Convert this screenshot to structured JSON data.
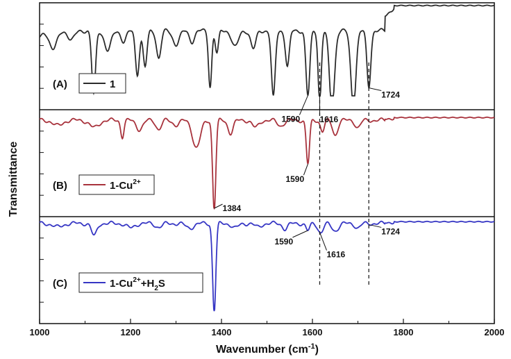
{
  "chart_data": {
    "type": "line",
    "xlabel": "Wavenumber (cm",
    "xlabel_sup": "-1",
    "xlabel_close": ")",
    "ylabel": "Transmittance",
    "xlim": [
      1000,
      2000
    ],
    "xticks": [
      "1000",
      "1200",
      "1400",
      "1600",
      "1800",
      "2000"
    ],
    "stacked_panels": true,
    "grid": false,
    "dashed_reference_lines": [
      1616,
      1724
    ],
    "panels": [
      {
        "panel_label": "(A)",
        "legend": {
          "main": "1",
          "sup": "",
          "mid": "",
          "sub": "",
          "tail": ""
        },
        "color": "#2b2b2b",
        "transmittance_min": 0.0,
        "transmittance_max": 1.0,
        "baseline": 0.72,
        "plateau_start": 1760,
        "plateau_value": 1.0,
        "peaks": [
          {
            "x": 1000,
            "depth": 0.08,
            "width": 8
          },
          {
            "x": 1030,
            "depth": 0.2,
            "width": 12
          },
          {
            "x": 1070,
            "depth": 0.1,
            "width": 10
          },
          {
            "x": 1119,
            "depth": 0.7,
            "width": 6
          },
          {
            "x": 1150,
            "depth": 0.22,
            "width": 10
          },
          {
            "x": 1185,
            "depth": 0.12,
            "width": 8
          },
          {
            "x": 1215,
            "depth": 0.48,
            "width": 6
          },
          {
            "x": 1232,
            "depth": 0.4,
            "width": 6
          },
          {
            "x": 1262,
            "depth": 0.3,
            "width": 7
          },
          {
            "x": 1300,
            "depth": 0.15,
            "width": 10
          },
          {
            "x": 1335,
            "depth": 0.12,
            "width": 8
          },
          {
            "x": 1375,
            "depth": 0.62,
            "width": 5
          },
          {
            "x": 1390,
            "depth": 0.25,
            "width": 5
          },
          {
            "x": 1430,
            "depth": 0.18,
            "width": 10
          },
          {
            "x": 1470,
            "depth": 0.2,
            "width": 8
          },
          {
            "x": 1514,
            "depth": 0.74,
            "width": 6
          },
          {
            "x": 1545,
            "depth": 0.4,
            "width": 6
          },
          {
            "x": 1590,
            "depth": 0.72,
            "width": 6
          },
          {
            "x": 1616,
            "depth": 0.78,
            "width": 5
          },
          {
            "x": 1643,
            "depth": 0.86,
            "width": 8
          },
          {
            "x": 1690,
            "depth": 0.82,
            "width": 8
          },
          {
            "x": 1724,
            "depth": 0.62,
            "width": 6
          }
        ],
        "annotations": [
          {
            "text": "1590",
            "x": 1590
          },
          {
            "text": "1616",
            "x": 1616
          },
          {
            "text": "1724",
            "x": 1724
          }
        ]
      },
      {
        "panel_label": "(B)",
        "legend": {
          "main": "1-Cu",
          "sup": "2+",
          "mid": "",
          "sub": "",
          "tail": ""
        },
        "color": "#a8323c",
        "baseline": 0.96,
        "plateau_start": 1760,
        "plateau_value": 0.99,
        "peaks": [
          {
            "x": 1040,
            "depth": 0.06,
            "width": 14
          },
          {
            "x": 1120,
            "depth": 0.08,
            "width": 14
          },
          {
            "x": 1182,
            "depth": 0.18,
            "width": 5
          },
          {
            "x": 1220,
            "depth": 0.1,
            "width": 10
          },
          {
            "x": 1262,
            "depth": 0.1,
            "width": 8
          },
          {
            "x": 1300,
            "depth": 0.05,
            "width": 10
          },
          {
            "x": 1345,
            "depth": 0.3,
            "width": 12
          },
          {
            "x": 1384,
            "depth": 0.98,
            "width": 5
          },
          {
            "x": 1420,
            "depth": 0.14,
            "width": 8
          },
          {
            "x": 1475,
            "depth": 0.08,
            "width": 10
          },
          {
            "x": 1530,
            "depth": 0.06,
            "width": 10
          },
          {
            "x": 1590,
            "depth": 0.48,
            "width": 5
          },
          {
            "x": 1622,
            "depth": 0.12,
            "width": 6
          },
          {
            "x": 1650,
            "depth": 0.16,
            "width": 8
          },
          {
            "x": 1700,
            "depth": 0.08,
            "width": 8
          }
        ],
        "annotations": [
          {
            "text": "1590",
            "x": 1590
          },
          {
            "text": "1384",
            "x": 1384
          }
        ]
      },
      {
        "panel_label": "(C)",
        "legend": {
          "main": "1-Cu",
          "sup": "2+",
          "mid": "+H",
          "sub": "2",
          "tail": "S"
        },
        "color": "#3636c4",
        "baseline": 0.97,
        "plateau_start": 1760,
        "plateau_value": 0.99,
        "peaks": [
          {
            "x": 1040,
            "depth": 0.04,
            "width": 14
          },
          {
            "x": 1120,
            "depth": 0.14,
            "width": 8
          },
          {
            "x": 1200,
            "depth": 0.05,
            "width": 12
          },
          {
            "x": 1262,
            "depth": 0.04,
            "width": 10
          },
          {
            "x": 1330,
            "depth": 0.05,
            "width": 12
          },
          {
            "x": 1384,
            "depth": 0.98,
            "width": 5
          },
          {
            "x": 1430,
            "depth": 0.05,
            "width": 10
          },
          {
            "x": 1480,
            "depth": 0.04,
            "width": 10
          },
          {
            "x": 1540,
            "depth": 0.06,
            "width": 8
          },
          {
            "x": 1590,
            "depth": 0.08,
            "width": 6
          },
          {
            "x": 1618,
            "depth": 0.1,
            "width": 8
          },
          {
            "x": 1650,
            "depth": 0.08,
            "width": 10
          },
          {
            "x": 1700,
            "depth": 0.05,
            "width": 8
          }
        ],
        "annotations": [
          {
            "text": "1590",
            "x": 1590
          },
          {
            "text": "1616",
            "x": 1616
          },
          {
            "text": "1724",
            "x": 1724
          }
        ]
      }
    ]
  }
}
